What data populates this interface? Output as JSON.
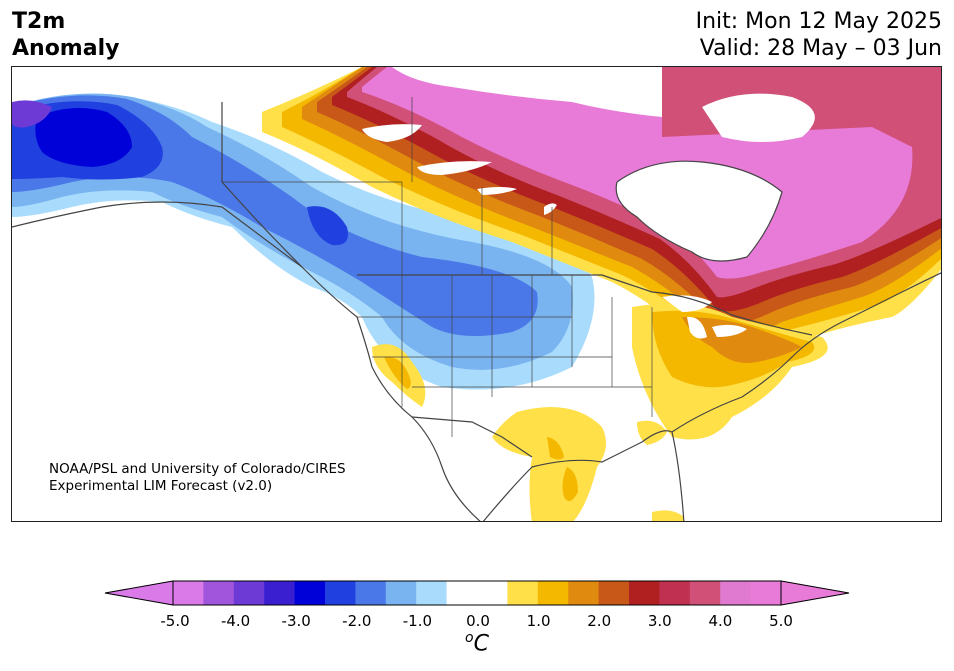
{
  "title": {
    "line1": "T2m",
    "line2": "Anomaly"
  },
  "init": {
    "line1": "Init: Mon 12 May 2025",
    "line2": "Valid: 28 May – 03 Jun"
  },
  "credit": {
    "line1": "NOAA/PSL and University of Colorado/CIRES",
    "line2": "Experimental LIM Forecast (v2.0)"
  },
  "colorbar": {
    "ticks": [
      "-5.0",
      "-4.0",
      "-3.0",
      "-2.0",
      "-1.0",
      "0.0",
      "1.0",
      "2.0",
      "3.0",
      "4.0",
      "5.0"
    ],
    "unit_main": "C",
    "unit_sup": "o",
    "colors": [
      "#d97ae8",
      "#a055dc",
      "#6e3ad6",
      "#3a1fd0",
      "#0000d8",
      "#2040e0",
      "#4a78e8",
      "#7ab4f0",
      "#a9dcfc",
      "#ffffff",
      "#ffffff",
      "#ffe048",
      "#f5b800",
      "#e08a10",
      "#c85818",
      "#b02020",
      "#c03050",
      "#d05078",
      "#e07ad0",
      "#e87ad8"
    ],
    "extend_low": "#d97ae8",
    "extend_high": "#e87ad8"
  },
  "map_colors": {
    "warm_strong": "#e87ad8",
    "warm_pink": "#d05078",
    "warm_red": "#b02020",
    "warm_orange_dark": "#c85818",
    "warm_orange": "#e08a10",
    "warm_gold": "#f5b800",
    "warm_yellow": "#ffe048",
    "cold_light": "#a9dcfc",
    "cold_sky": "#7ab4f0",
    "cold_mid": "#4a78e8",
    "cold_blue": "#2040e0",
    "cold_deep": "#0000d8",
    "cold_indigo": "#3a1fd0",
    "cold_violet": "#6e3ad6",
    "land_neutral": "#ffffff",
    "border": "#444444"
  }
}
